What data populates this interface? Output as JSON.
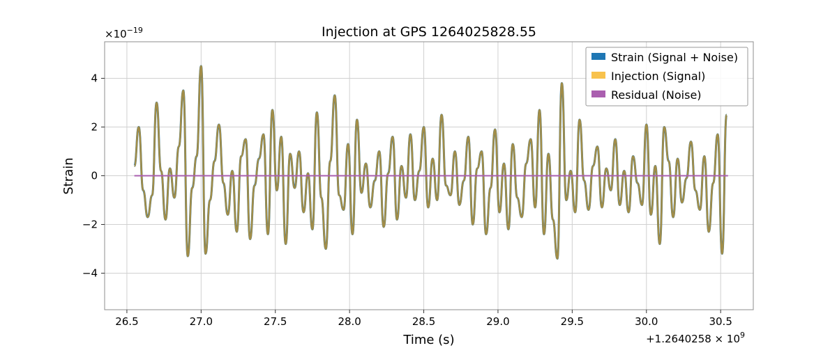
{
  "chart_data": {
    "type": "line",
    "title": "Injection at GPS 1264025828.55",
    "xlabel": "Time (s)",
    "ylabel": "Strain",
    "x_offset_label": "+1.2640258 × 10",
    "x_offset_exponent": "9",
    "y_multiplier_label": "×10",
    "y_multiplier_exponent": "−19",
    "xlim": [
      26.35,
      30.72
    ],
    "ylim": [
      -5.5,
      5.5
    ],
    "x_ticks": [
      26.5,
      27.0,
      27.5,
      28.0,
      28.5,
      29.0,
      29.5,
      30.0,
      30.5
    ],
    "x_tick_labels": [
      "26.5",
      "27.0",
      "27.5",
      "28.0",
      "28.5",
      "29.0",
      "29.5",
      "30.0",
      "30.5"
    ],
    "y_ticks": [
      -4,
      -2,
      0,
      2,
      4
    ],
    "y_tick_labels": [
      "−4",
      "−2",
      "0",
      "2",
      "4"
    ],
    "grid": true,
    "legend_position": "top-right",
    "series": [
      {
        "name": "Strain (Signal + Noise)",
        "color": "#1f77b4",
        "x": [
          26.55,
          26.58,
          26.61,
          26.64,
          26.67,
          26.7,
          26.73,
          26.76,
          26.79,
          26.82,
          26.85,
          26.88,
          26.91,
          26.94,
          26.97,
          27.0,
          27.03,
          27.06,
          27.09,
          27.12,
          27.15,
          27.18,
          27.21,
          27.24,
          27.27,
          27.3,
          27.33,
          27.36,
          27.39,
          27.42,
          27.45,
          27.48,
          27.51,
          27.54,
          27.57,
          27.6,
          27.63,
          27.66,
          27.69,
          27.72,
          27.75,
          27.78,
          27.81,
          27.84,
          27.87,
          27.9,
          27.93,
          27.96,
          27.99,
          28.02,
          28.05,
          28.08,
          28.11,
          28.14,
          28.17,
          28.2,
          28.23,
          28.26,
          28.29,
          28.32,
          28.35,
          28.38,
          28.41,
          28.44,
          28.47,
          28.5,
          28.53,
          28.56,
          28.59,
          28.62,
          28.65,
          28.68,
          28.71,
          28.74,
          28.77,
          28.8,
          28.83,
          28.86,
          28.89,
          28.92,
          28.95,
          28.98,
          29.01,
          29.04,
          29.07,
          29.1,
          29.13,
          29.16,
          29.19,
          29.22,
          29.25,
          29.28,
          29.31,
          29.34,
          29.37,
          29.4,
          29.43,
          29.46,
          29.49,
          29.52,
          29.55,
          29.58,
          29.61,
          29.64,
          29.67,
          29.7,
          29.73,
          29.76,
          29.79,
          29.82,
          29.85,
          29.88,
          29.91,
          29.94,
          29.97,
          30.0,
          30.03,
          30.06,
          30.09,
          30.12,
          30.15,
          30.18,
          30.21,
          30.24,
          30.27,
          30.3,
          30.33,
          30.36,
          30.39,
          30.42,
          30.45,
          30.48,
          30.51,
          30.54
        ],
        "y": [
          0.4,
          2.0,
          -0.6,
          -1.7,
          -0.8,
          3.0,
          0.2,
          -1.8,
          0.3,
          -0.9,
          1.2,
          3.5,
          -3.3,
          -0.5,
          0.8,
          4.5,
          -3.2,
          -1.0,
          0.6,
          2.1,
          -0.3,
          -1.6,
          0.2,
          -2.3,
          0.8,
          1.5,
          -2.6,
          -0.4,
          0.7,
          1.7,
          -2.4,
          2.7,
          -0.6,
          1.6,
          -2.8,
          0.9,
          -0.5,
          1.0,
          -1.5,
          0.1,
          -2.2,
          2.6,
          -0.9,
          -3.0,
          0.6,
          3.3,
          -0.8,
          -1.4,
          1.3,
          -2.4,
          2.3,
          -0.7,
          0.5,
          -1.3,
          -0.2,
          1.0,
          -2.1,
          0.1,
          1.6,
          -1.8,
          0.4,
          -0.9,
          1.7,
          -1.0,
          0.2,
          2.0,
          -1.3,
          0.7,
          -1.0,
          2.5,
          -0.4,
          -0.8,
          1.0,
          -1.2,
          -0.2,
          1.6,
          -2.0,
          0.3,
          1.0,
          -2.4,
          -0.5,
          1.9,
          -1.5,
          0.5,
          -2.2,
          1.3,
          -0.9,
          -1.7,
          0.5,
          1.5,
          -1.3,
          2.7,
          -2.4,
          0.9,
          -1.8,
          -3.4,
          3.8,
          -1.0,
          0.2,
          -1.5,
          2.3,
          -0.2,
          -1.4,
          0.4,
          1.2,
          -1.3,
          0.3,
          -0.6,
          1.5,
          -1.2,
          0.2,
          -1.5,
          0.8,
          -0.3,
          -1.2,
          2.1,
          -1.6,
          0.4,
          -2.8,
          2.0,
          0.6,
          -1.7,
          0.7,
          -1.1,
          -0.1,
          1.4,
          -0.6,
          -1.4,
          0.8,
          -2.3,
          -0.3,
          1.7,
          -3.2,
          2.5
        ]
      },
      {
        "name": "Injection (Signal)",
        "color": "#f8c24c",
        "x": [],
        "y": []
      },
      {
        "name": "Residual (Noise)",
        "color": "#aa5faf",
        "x": [
          26.55,
          30.55
        ],
        "y": [
          0,
          0
        ]
      }
    ]
  }
}
